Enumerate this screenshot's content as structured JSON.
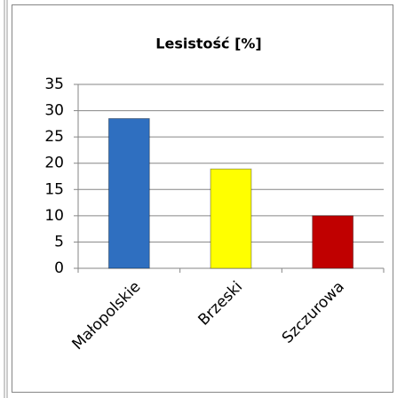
{
  "chart_data": {
    "type": "bar",
    "title": "Lesistość [%]",
    "categories": [
      "Małopolskie",
      "Brzeski",
      "Szczurowa"
    ],
    "values": [
      28.5,
      18.9,
      10
    ],
    "colors": [
      "#2f6fc0",
      "#ffff00",
      "#c00000"
    ],
    "ylim": [
      0,
      35
    ],
    "yticks": [
      0,
      5,
      10,
      15,
      20,
      25,
      30,
      35
    ],
    "grid": true
  }
}
